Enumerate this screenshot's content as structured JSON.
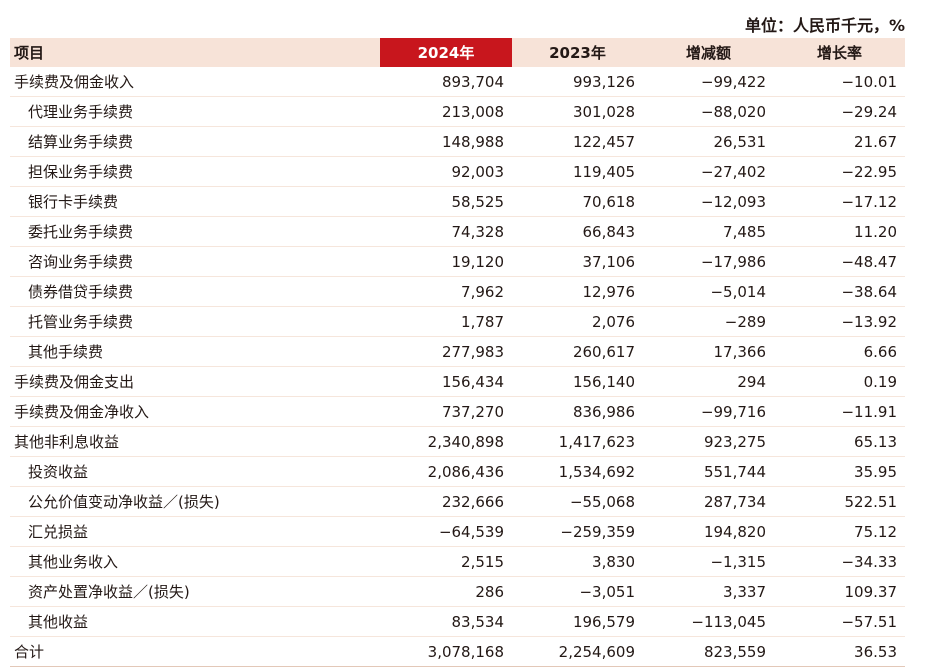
{
  "unit_note": "单位：人民币千元，%",
  "header": {
    "item": "项目",
    "col_2024": "2024年",
    "col_2023": "2023年",
    "change": "增减额",
    "growth": "增长率"
  },
  "rows": [
    {
      "label": "手续费及佣金收入",
      "v2024": "893,704",
      "v2023": "993,126",
      "change": "−99,422",
      "growth": "−10.01",
      "sub": false
    },
    {
      "label": "代理业务手续费",
      "v2024": "213,008",
      "v2023": "301,028",
      "change": "−88,020",
      "growth": "−29.24",
      "sub": true
    },
    {
      "label": "结算业务手续费",
      "v2024": "148,988",
      "v2023": "122,457",
      "change": "26,531",
      "growth": "21.67",
      "sub": true
    },
    {
      "label": "担保业务手续费",
      "v2024": "92,003",
      "v2023": "119,405",
      "change": "−27,402",
      "growth": "−22.95",
      "sub": true
    },
    {
      "label": "银行卡手续费",
      "v2024": "58,525",
      "v2023": "70,618",
      "change": "−12,093",
      "growth": "−17.12",
      "sub": true
    },
    {
      "label": "委托业务手续费",
      "v2024": "74,328",
      "v2023": "66,843",
      "change": "7,485",
      "growth": "11.20",
      "sub": true
    },
    {
      "label": "咨询业务手续费",
      "v2024": "19,120",
      "v2023": "37,106",
      "change": "−17,986",
      "growth": "−48.47",
      "sub": true
    },
    {
      "label": "债券借贷手续费",
      "v2024": "7,962",
      "v2023": "12,976",
      "change": "−5,014",
      "growth": "−38.64",
      "sub": true
    },
    {
      "label": "托管业务手续费",
      "v2024": "1,787",
      "v2023": "2,076",
      "change": "−289",
      "growth": "−13.92",
      "sub": true
    },
    {
      "label": "其他手续费",
      "v2024": "277,983",
      "v2023": "260,617",
      "change": "17,366",
      "growth": "6.66",
      "sub": true
    },
    {
      "label": "手续费及佣金支出",
      "v2024": "156,434",
      "v2023": "156,140",
      "change": "294",
      "growth": "0.19",
      "sub": false
    },
    {
      "label": "手续费及佣金净收入",
      "v2024": "737,270",
      "v2023": "836,986",
      "change": "−99,716",
      "growth": "−11.91",
      "sub": false
    },
    {
      "label": "其他非利息收益",
      "v2024": "2,340,898",
      "v2023": "1,417,623",
      "change": "923,275",
      "growth": "65.13",
      "sub": false
    },
    {
      "label": "投资收益",
      "v2024": "2,086,436",
      "v2023": "1,534,692",
      "change": "551,744",
      "growth": "35.95",
      "sub": true
    },
    {
      "label": "公允价值变动净收益／(损失)",
      "v2024": "232,666",
      "v2023": "−55,068",
      "change": "287,734",
      "growth": "522.51",
      "sub": true
    },
    {
      "label": "汇兑损益",
      "v2024": "−64,539",
      "v2023": "−259,359",
      "change": "194,820",
      "growth": "75.12",
      "sub": true
    },
    {
      "label": "其他业务收入",
      "v2024": "2,515",
      "v2023": "3,830",
      "change": "−1,315",
      "growth": "−34.33",
      "sub": true
    },
    {
      "label": "资产处置净收益／(损失)",
      "v2024": "286",
      "v2023": "−3,051",
      "change": "3,337",
      "growth": "109.37",
      "sub": true
    },
    {
      "label": "其他收益",
      "v2024": "83,534",
      "v2023": "196,579",
      "change": "−113,045",
      "growth": "−57.51",
      "sub": true
    },
    {
      "label": "合计",
      "v2024": "3,078,168",
      "v2023": "2,254,609",
      "change": "823,559",
      "growth": "36.53",
      "sub": false
    }
  ],
  "colors": {
    "header_bg": "#f7e3d8",
    "highlight_bg": "#c8161d",
    "highlight_text": "#ffffff",
    "text": "#231815"
  }
}
